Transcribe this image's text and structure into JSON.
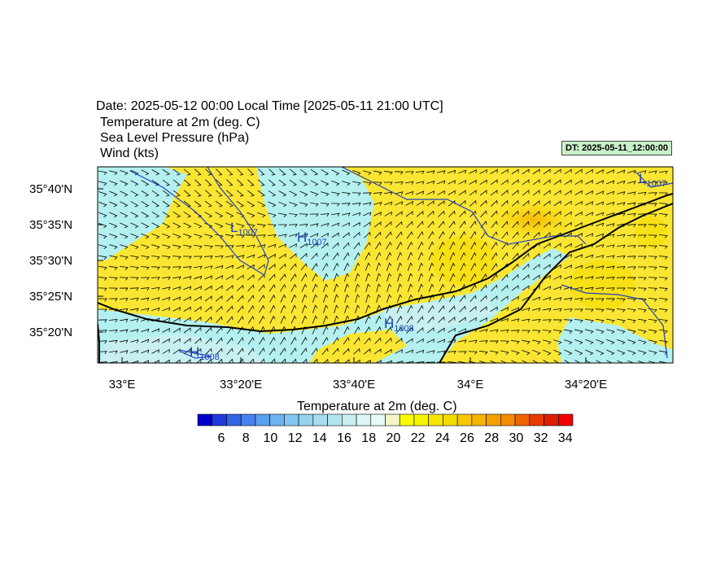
{
  "header": {
    "line1": "Date: 2025-05-12  00:00 Local Time [2025-05-11  21:00 UTC]",
    "line2": "Temperature at 2m   (deg. C)",
    "line3": "Sea Level Pressure   (hPa)",
    "line4": "Wind   (kts)",
    "dt_badge": "DT: 2025-05-11_12:00:00"
  },
  "map": {
    "lat_labels": [
      "35°40'N",
      "35°35'N",
      "35°30'N",
      "35°25'N",
      "35°20'N"
    ],
    "lon_labels": [
      "33°E",
      "33°20'E",
      "33°40'E",
      "34°E",
      "34°20'E"
    ],
    "pressure_centers": [
      {
        "type": "L",
        "value": "1007"
      },
      {
        "type": "H",
        "value": "1007"
      },
      {
        "type": "H",
        "value": "1008"
      },
      {
        "type": "H",
        "value": "1008"
      },
      {
        "type": "L",
        "value": "1007"
      }
    ],
    "colors": {
      "sea_cool": "#b4f0f0",
      "land_warm": "#fae632",
      "yellow": "#f5f500",
      "orange": "#f5b400",
      "coast": "#000000",
      "isobar": "#2040c0"
    }
  },
  "colorbar": {
    "title": "Temperature at 2m  (deg. C)",
    "labels": [
      "6",
      "8",
      "10",
      "12",
      "14",
      "16",
      "18",
      "20",
      "22",
      "24",
      "26",
      "28",
      "30",
      "32",
      "34"
    ],
    "colors": [
      "#0000c8",
      "#1e3cdc",
      "#3264e6",
      "#4682f0",
      "#5aa0f0",
      "#6eb4f0",
      "#82c8f0",
      "#96d2f0",
      "#aadcf0",
      "#b4e6f0",
      "#c8f0f0",
      "#dcf5f5",
      "#e6fafa",
      "#f5f5c8",
      "#fafa00",
      "#f5f500",
      "#f5e600",
      "#f5dc00",
      "#f5c800",
      "#f5b400",
      "#f5a000",
      "#f58c00",
      "#f06400",
      "#e63c00",
      "#dc1e00",
      "#f00000"
    ]
  }
}
